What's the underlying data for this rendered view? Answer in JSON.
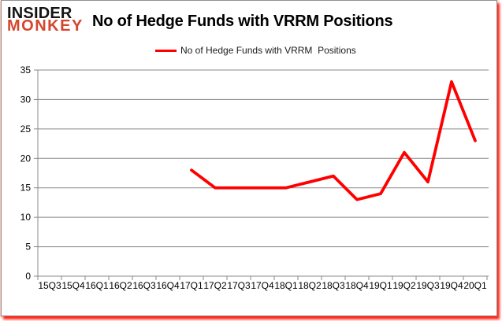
{
  "brand": {
    "line1": "INSIDER",
    "line2": "MONKEY",
    "accent_color": "#d5462e"
  },
  "header": {
    "title": "No of Hedge Funds with VRRM Positions"
  },
  "legend": {
    "label": "No of Hedge Funds with VRRM  Positions",
    "swatch_color": "#fe0000"
  },
  "chart_data": {
    "type": "line",
    "title": "No of Hedge Funds with VRRM Positions",
    "xlabel": "",
    "ylabel": "",
    "ylim": [
      0,
      35
    ],
    "ytick_step": 5,
    "grid": true,
    "legend_position": "top-center",
    "categories": [
      "15Q3",
      "15Q4",
      "16Q1",
      "16Q2",
      "16Q3",
      "16Q4",
      "17Q1",
      "17Q2",
      "17Q3",
      "17Q4",
      "18Q1",
      "18Q2",
      "18Q3",
      "18Q4",
      "19Q1",
      "19Q2",
      "19Q3",
      "19Q4",
      "20Q1"
    ],
    "series": [
      {
        "name": "No of Hedge Funds with VRRM Positions",
        "color": "#fe0000",
        "values": [
          null,
          null,
          null,
          null,
          null,
          null,
          18,
          15,
          15,
          15,
          15,
          16,
          17,
          13,
          14,
          21,
          16,
          33,
          23
        ]
      }
    ],
    "colors": {
      "gridline": "#8a8a8a",
      "axis": "#8a8a8a",
      "tick_label": "#000000"
    }
  }
}
